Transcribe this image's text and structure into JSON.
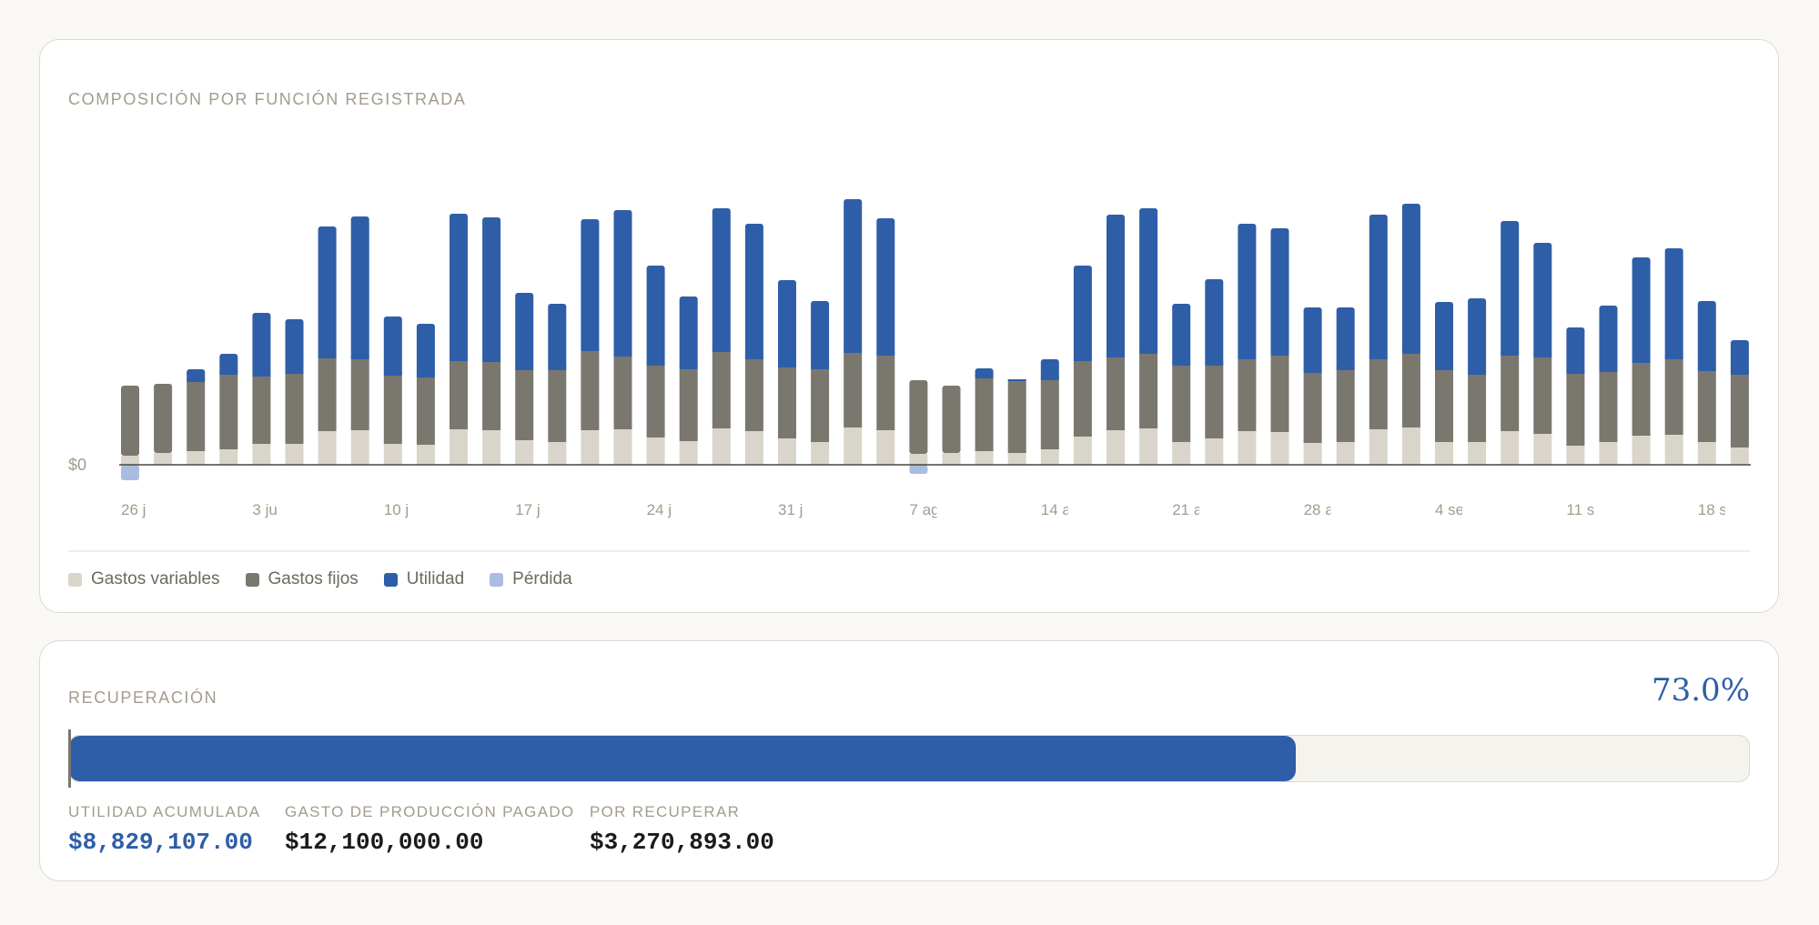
{
  "composition": {
    "title": "COMPOSICIÓN POR FUNCIÓN REGISTRADA",
    "legend": [
      {
        "label": "Gastos variables",
        "color": "#d9d5ca"
      },
      {
        "label": "Gastos fijos",
        "color": "#7a776e"
      },
      {
        "label": "Utilidad",
        "color": "#2e5ea8"
      },
      {
        "label": "Pérdida",
        "color": "#a8bde0"
      }
    ]
  },
  "chart_data": {
    "type": "bar",
    "stacked": true,
    "title": "COMPOSICIÓN POR FUNCIÓN REGISTRADA",
    "y_tick_label": "$0",
    "y_ticks": [
      0
    ],
    "ylim": [
      -19,
      288
    ],
    "grid": false,
    "legend_position": "bottom-left",
    "x_tick_labels": [
      "26 j",
      "3 ju",
      "10 j",
      "17 j",
      "24 j",
      "31 j",
      "7 ag",
      "14 a",
      "21 a",
      "28 a",
      "4 se",
      "11 s",
      "18 s"
    ],
    "x_tick_every": 4,
    "series": [
      {
        "name": "Gastos variables",
        "color": "#d9d5ca",
        "values": [
          10,
          13,
          15,
          17,
          23,
          23,
          37,
          38,
          23,
          22,
          39,
          38,
          27,
          25,
          38,
          39,
          30,
          26,
          40,
          37,
          29,
          25,
          41,
          38,
          12,
          13,
          15,
          13,
          17,
          31,
          38,
          40,
          25,
          29,
          37,
          36,
          24,
          25,
          39,
          41,
          25,
          25,
          37,
          34,
          21,
          25,
          32,
          33,
          25,
          19
        ]
      },
      {
        "name": "Gastos fijos",
        "color": "#7a776e",
        "values": [
          77,
          76,
          76,
          82,
          74,
          77,
          80,
          78,
          75,
          74,
          75,
          75,
          77,
          79,
          87,
          80,
          79,
          79,
          84,
          79,
          78,
          80,
          82,
          82,
          81,
          74,
          80,
          79,
          76,
          83,
          80,
          82,
          84,
          80,
          79,
          84,
          77,
          79,
          77,
          81,
          79,
          74,
          83,
          84,
          79,
          77,
          80,
          83,
          78,
          80
        ]
      },
      {
        "name": "Utilidad",
        "color": "#2e5ea8",
        "values": [
          0,
          0,
          14,
          23,
          70,
          60,
          145,
          157,
          65,
          59,
          162,
          159,
          85,
          73,
          145,
          161,
          110,
          80,
          158,
          149,
          96,
          75,
          169,
          151,
          0,
          0,
          11,
          2,
          23,
          105,
          157,
          160,
          68,
          95,
          149,
          140,
          72,
          69,
          159,
          165,
          75,
          84,
          148,
          126,
          51,
          73,
          116,
          122,
          77,
          38
        ]
      },
      {
        "name": "Pérdida",
        "color": "#a8bde0",
        "values": [
          -17,
          0,
          0,
          0,
          0,
          0,
          0,
          0,
          0,
          0,
          0,
          0,
          0,
          0,
          0,
          0,
          0,
          0,
          0,
          0,
          0,
          0,
          0,
          0,
          -10,
          0,
          0,
          0,
          0,
          0,
          0,
          0,
          0,
          0,
          0,
          0,
          0,
          0,
          0,
          0,
          0,
          0,
          0,
          0,
          0,
          0,
          0,
          0,
          0,
          0
        ]
      }
    ]
  },
  "recovery": {
    "title": "RECUPERACIÓN",
    "percent_label": "73.0%",
    "percent_value": 0.73,
    "stats": [
      {
        "label": "UTILIDAD ACUMULADA",
        "value": "$8,829,107.00",
        "accent": true
      },
      {
        "label": "GASTO DE PRODUCCIÓN PAGADO",
        "value": "$12,100,000.00",
        "accent": false
      },
      {
        "label": "POR RECUPERAR",
        "value": "$3,270,893.00",
        "accent": false
      }
    ]
  }
}
